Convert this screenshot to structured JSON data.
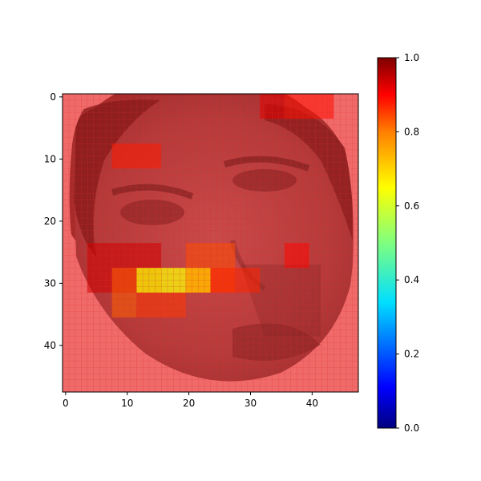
{
  "chart_data": {
    "type": "heatmap",
    "title": "",
    "xlabel": "",
    "ylabel": "",
    "xlim": [
      -0.5,
      47.5
    ],
    "ylim": [
      47.5,
      -0.5
    ],
    "y_axis_inverted": true,
    "x_ticks": [
      0,
      10,
      20,
      30,
      40
    ],
    "x_tick_labels": [
      "0",
      "10",
      "20",
      "30",
      "40"
    ],
    "y_ticks": [
      0,
      10,
      20,
      30,
      40
    ],
    "y_tick_labels": [
      "0",
      "10",
      "20",
      "30",
      "40"
    ],
    "grid": true,
    "grid_color": "#dd2222",
    "underlay": "grayscale face photograph (48x48) tinted by red overlay",
    "colormap": "jet",
    "colorbar": {
      "range": [
        0.0,
        1.0
      ],
      "ticks": [
        0.0,
        0.2,
        0.4,
        0.6,
        0.8,
        1.0
      ],
      "tick_labels": [
        "0.0",
        "0.2",
        "0.4",
        "0.6",
        "0.8",
        "1.0"
      ],
      "placement": "right"
    },
    "overlay_background_value": 1.0,
    "overlay_patches": [
      {
        "x": [
          8,
          16
        ],
        "y": [
          8,
          12
        ],
        "value": 0.85
      },
      {
        "x": [
          4,
          16
        ],
        "y": [
          24,
          32
        ],
        "value": 0.92
      },
      {
        "x": [
          20,
          28
        ],
        "y": [
          24,
          32
        ],
        "value": 0.8
      },
      {
        "x": [
          8,
          12
        ],
        "y": [
          28,
          36
        ],
        "value": 0.78
      },
      {
        "x": [
          12,
          20
        ],
        "y": [
          28,
          32
        ],
        "value": 0.62
      },
      {
        "x": [
          20,
          24
        ],
        "y": [
          28,
          32
        ],
        "value": 0.68
      },
      {
        "x": [
          24,
          32
        ],
        "y": [
          28,
          32
        ],
        "value": 0.84
      },
      {
        "x": [
          12,
          20
        ],
        "y": [
          32,
          36
        ],
        "value": 0.82
      },
      {
        "x": [
          36,
          40
        ],
        "y": [
          24,
          28
        ],
        "value": 0.87
      },
      {
        "x": [
          32,
          36
        ],
        "y": [
          0,
          4
        ],
        "value": 0.9
      },
      {
        "x": [
          36,
          44
        ],
        "y": [
          0,
          4
        ],
        "value": 0.86
      }
    ],
    "colors": {
      "jet": [
        "#00007f",
        "#0000ff",
        "#007fff",
        "#00ffff",
        "#7fff7f",
        "#ffff00",
        "#ff7f00",
        "#ff0000",
        "#7f0000"
      ]
    }
  }
}
